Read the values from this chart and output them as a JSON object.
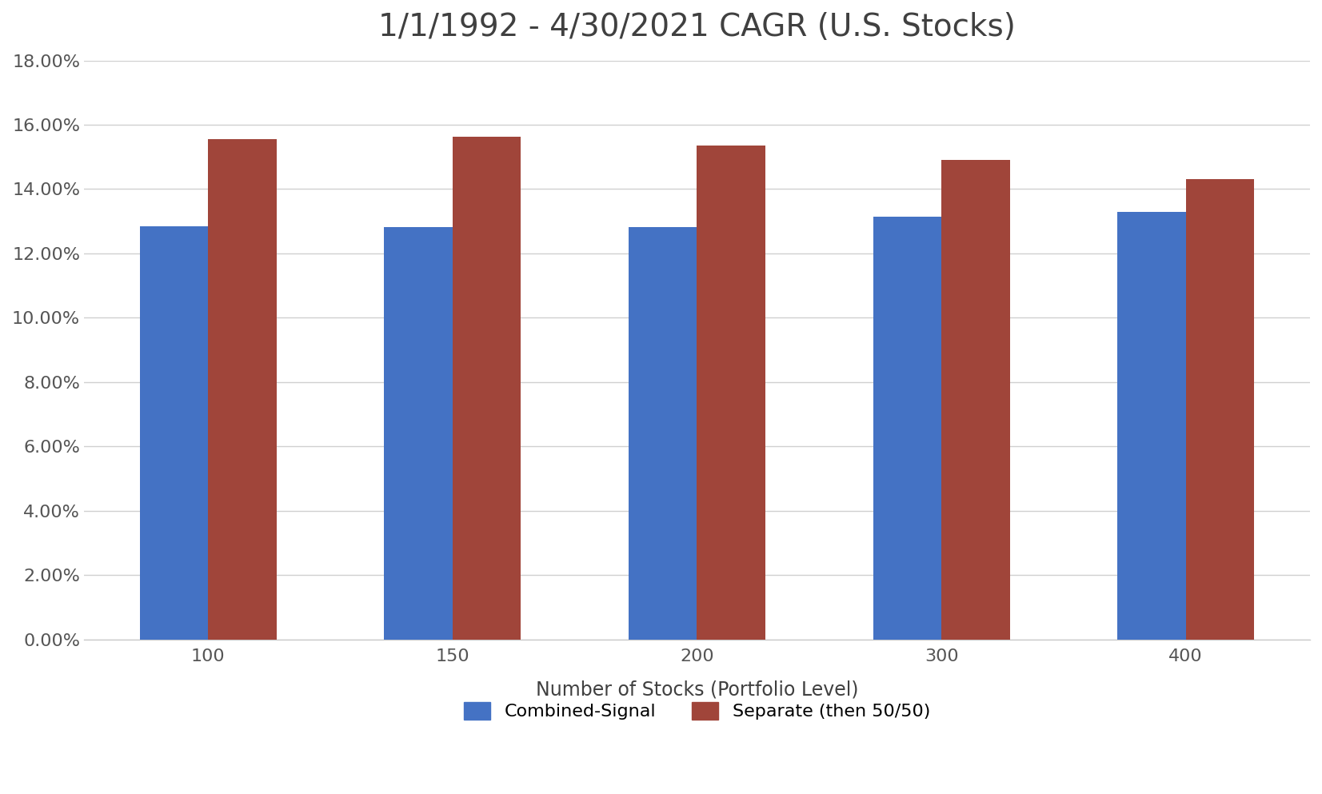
{
  "title": "1/1/1992 - 4/30/2021 CAGR (U.S. Stocks)",
  "xlabel": "Number of Stocks (Portfolio Level)",
  "categories": [
    100,
    150,
    200,
    300,
    400
  ],
  "combined_signal": [
    0.1285,
    0.1282,
    0.1281,
    0.1315,
    0.133
  ],
  "separate": [
    0.1555,
    0.1563,
    0.1535,
    0.149,
    0.143
  ],
  "combined_color": "#4472C4",
  "separate_color": "#A0453A",
  "ylim": [
    0,
    0.18
  ],
  "yticks": [
    0.0,
    0.02,
    0.04,
    0.06,
    0.08,
    0.1,
    0.12,
    0.14,
    0.16,
    0.18
  ],
  "legend_labels": [
    "Combined-Signal",
    "Separate (then 50/50)"
  ],
  "background_color": "#FFFFFF",
  "plot_bg_color": "#FFFFFF",
  "grid_color": "#D0D0D0",
  "title_fontsize": 28,
  "axis_fontsize": 17,
  "tick_fontsize": 16,
  "legend_fontsize": 16,
  "bar_width": 0.28,
  "title_color": "#404040",
  "tick_color": "#555555"
}
